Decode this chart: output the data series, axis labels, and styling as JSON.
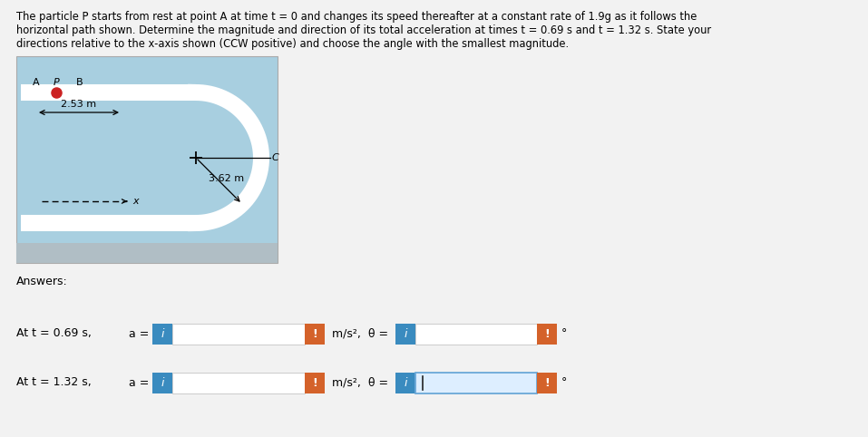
{
  "title_line1": "The particle P starts from rest at point A at time t = 0 and changes its speed thereafter at a constant rate of 1.9g as it follows the",
  "title_line2": "horizontal path shown. Determine the magnitude and direction of its total acceleration at times t = 0.69 s and t = 1.32 s. State your",
  "title_line3": "directions relative to the x-axis shown (CCW positive) and choose the angle with the smallest magnitude.",
  "dim_25": "2.53 m",
  "dim_36": "3.62 m",
  "answers_label": "Answers:",
  "row1_label": "At t = 0.69 s,",
  "row2_label": "At t = 1.32 s,",
  "bg_color": "#f2f2f2",
  "diagram_bg": "#a8cfe0",
  "track_color": "#ffffff",
  "blue_color": "#3a8bbf",
  "orange_color": "#d4622a",
  "input_border": "#cccccc",
  "theta_active_bg": "#ddeeff",
  "theta_active_border": "#6aa8d8",
  "gray_bar": "#b0bec5"
}
